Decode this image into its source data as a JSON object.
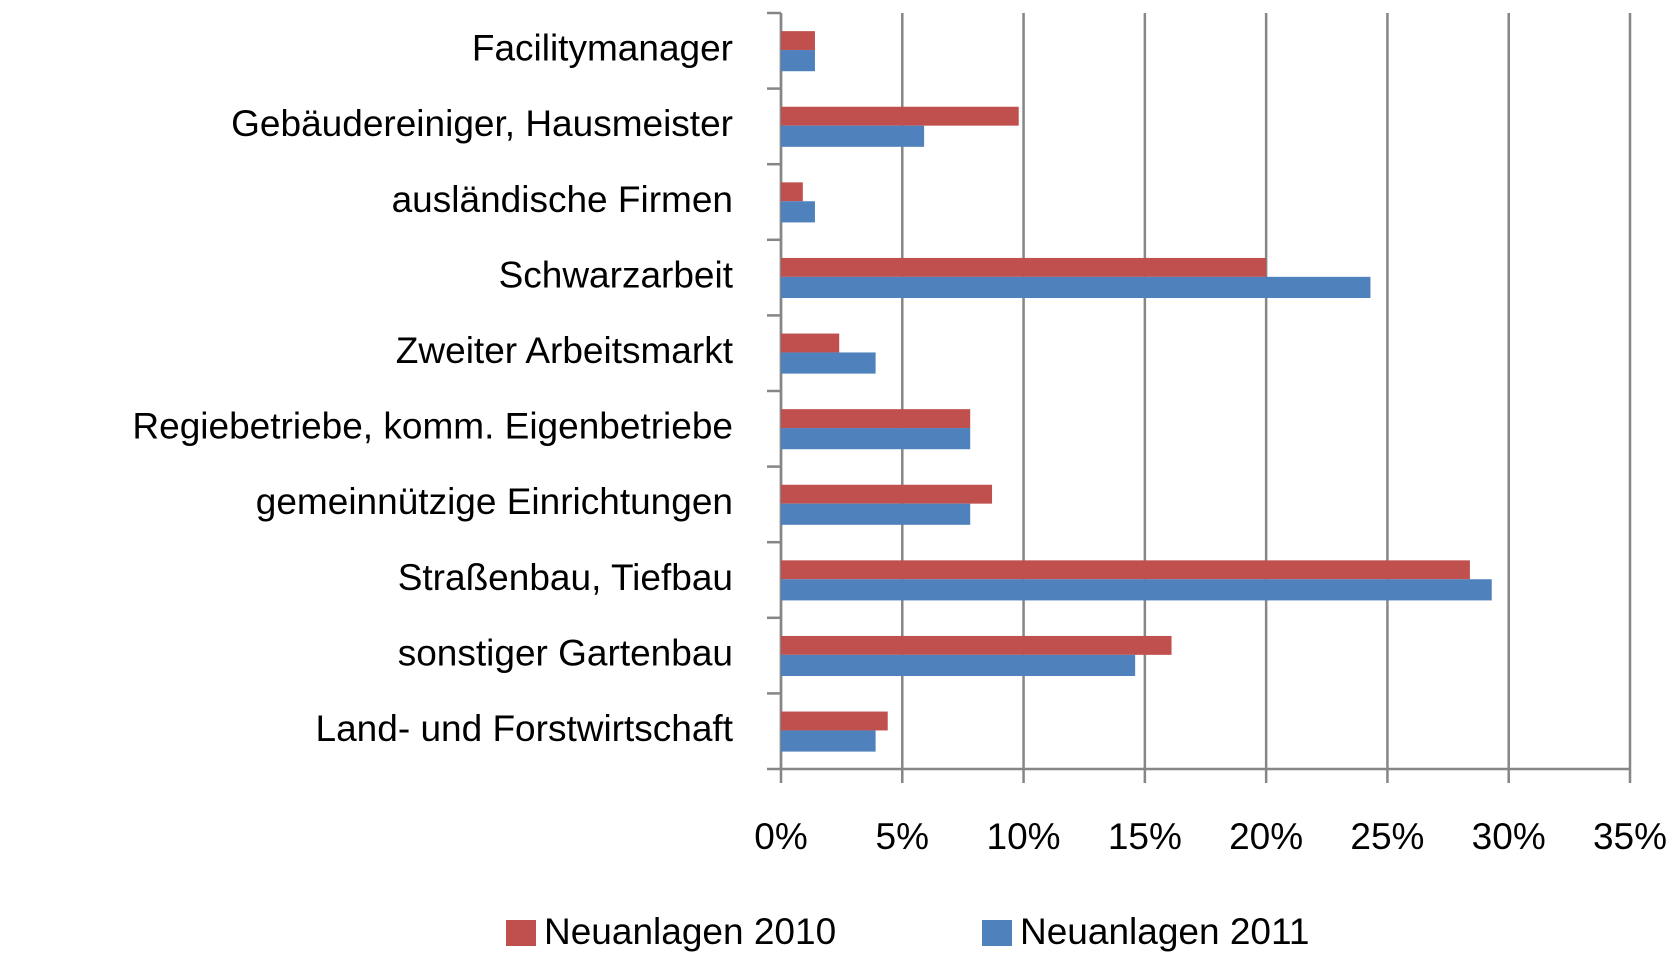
{
  "chart_data": {
    "type": "hbar",
    "categories": [
      "Facilitymanager",
      "Gebäudereiniger, Hausmeister",
      "ausländische Firmen",
      "Schwarzarbeit",
      "Zweiter Arbeitsmarkt",
      "Regiebetriebe, komm. Eigenbetriebe",
      "gemeinnützige Einrichtungen",
      "Straßenbau, Tiefbau",
      "sonstiger Gartenbau",
      "Land- und Forstwirtschaft"
    ],
    "series": [
      {
        "name": "Neuanlagen 2010",
        "color": "#c0504d",
        "values": [
          1.4,
          9.8,
          0.9,
          20.0,
          2.4,
          7.8,
          8.7,
          28.4,
          16.1,
          4.4
        ]
      },
      {
        "name": "Neuanlagen 2011",
        "color": "#4f81bd",
        "values": [
          1.4,
          5.9,
          1.4,
          24.3,
          3.9,
          7.8,
          7.8,
          29.3,
          14.6,
          3.9
        ]
      }
    ],
    "xlim": [
      0,
      35
    ],
    "xticks": [
      {
        "value": 0,
        "label": "0%"
      },
      {
        "value": 5,
        "label": "5%"
      },
      {
        "value": 10,
        "label": "10%"
      },
      {
        "value": 15,
        "label": "15%"
      },
      {
        "value": 20,
        "label": "20%"
      },
      {
        "value": 25,
        "label": "25%"
      },
      {
        "value": 30,
        "label": "30%"
      },
      {
        "value": 35,
        "label": "35%"
      }
    ],
    "grid": true,
    "legend": "bottom"
  }
}
